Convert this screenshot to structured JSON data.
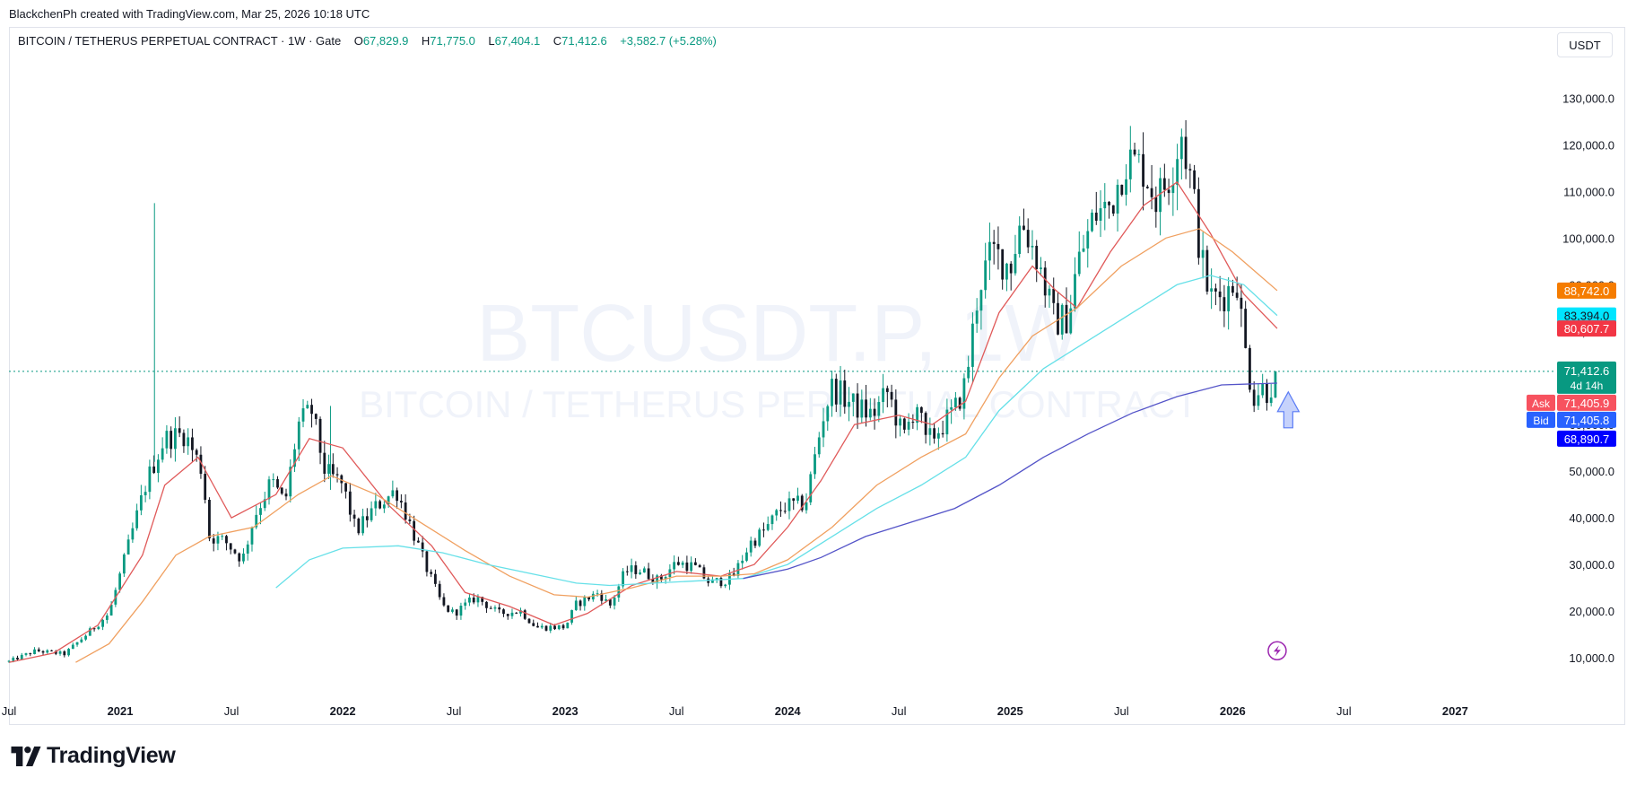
{
  "attribution": "BlackchenPh created with TradingView.com, Mar 25, 2026 10:18 UTC",
  "legend": {
    "symbol": "BITCOIN / TETHERUS PERPETUAL CONTRACT · 1W · Gate",
    "o_label": "O",
    "o": "67,829.9",
    "h_label": "H",
    "h": "71,775.0",
    "l_label": "L",
    "l": "67,404.1",
    "c_label": "C",
    "c": "71,412.6",
    "change": "+3,582.7 (+5.28%)"
  },
  "currency_button": "USDT",
  "watermark": {
    "ticker": "BTCUSDT.P, 1W",
    "name": "BITCOIN / TETHERUS PERPETUAL CONTRACT"
  },
  "price_tags": {
    "ma_orange": "88,742.0",
    "ma_cyan": "83,394.0",
    "ma_red": "80,607.7",
    "last": "71,412.6",
    "countdown": "4d 14h",
    "ask_label": "Ask",
    "ask": "71,405.9",
    "bid_label": "Bid",
    "bid": "71,405.8",
    "ma_blue": "68,890.7"
  },
  "colors": {
    "up": "#089981",
    "down": "#131722",
    "ma_red": "#e05a5a",
    "ma_orange": "#f0a060",
    "ma_cyan": "#66e0e8",
    "ma_blue": "#5454c8",
    "tag_orange": "#f57c00",
    "tag_cyan": "#00e5ff",
    "tag_red": "#f23645",
    "tag_green": "#089981",
    "ask": "#f7525f",
    "bid": "#2962ff",
    "tag_blue": "#0000ff"
  },
  "brand": "TradingView",
  "chart_data": {
    "type": "candlestick",
    "title": "BITCOIN / TETHERUS PERPETUAL CONTRACT · 1W · Gate",
    "y_unit": "USDT",
    "ylim": [
      3000,
      140000
    ],
    "xlim": [
      2020.5,
      2027.45
    ],
    "y_ticks": [
      {
        "value": 10000,
        "label": "10,000.0"
      },
      {
        "value": 20000,
        "label": "20,000.0"
      },
      {
        "value": 30000,
        "label": "30,000.0"
      },
      {
        "value": 40000,
        "label": "40,000.0"
      },
      {
        "value": 50000,
        "label": "50,000.0"
      },
      {
        "value": 60000,
        "label": "60,000.0"
      },
      {
        "value": 70000,
        "label": "70,000.0"
      },
      {
        "value": 80000,
        "label": "80,000.0"
      },
      {
        "value": 90000,
        "label": "90,000.0"
      },
      {
        "value": 100000,
        "label": "100,000.0"
      },
      {
        "value": 110000,
        "label": "110,000.0"
      },
      {
        "value": 120000,
        "label": "120,000.0"
      },
      {
        "value": 130000,
        "label": "130,000.0"
      }
    ],
    "x_ticks": [
      {
        "t": 2020.5,
        "label": "Jul",
        "bold": false
      },
      {
        "t": 2021.0,
        "label": "2021",
        "bold": true
      },
      {
        "t": 2021.5,
        "label": "Jul",
        "bold": false
      },
      {
        "t": 2022.0,
        "label": "2022",
        "bold": true
      },
      {
        "t": 2022.5,
        "label": "Jul",
        "bold": false
      },
      {
        "t": 2023.0,
        "label": "2023",
        "bold": true
      },
      {
        "t": 2023.5,
        "label": "Jul",
        "bold": false
      },
      {
        "t": 2024.0,
        "label": "2024",
        "bold": true
      },
      {
        "t": 2024.5,
        "label": "Jul",
        "bold": false
      },
      {
        "t": 2025.0,
        "label": "2025",
        "bold": true
      },
      {
        "t": 2025.5,
        "label": "Jul",
        "bold": false
      },
      {
        "t": 2026.0,
        "label": "2026",
        "bold": true
      },
      {
        "t": 2026.5,
        "label": "Jul",
        "bold": false
      },
      {
        "t": 2027.0,
        "label": "2027",
        "bold": true
      }
    ],
    "price_anchors": [
      [
        2020.5,
        9200
      ],
      [
        2020.62,
        11500
      ],
      [
        2020.75,
        10800
      ],
      [
        2020.86,
        15500
      ],
      [
        2020.95,
        19500
      ],
      [
        2021.03,
        33000
      ],
      [
        2021.12,
        48000
      ],
      [
        2021.2,
        57000
      ],
      [
        2021.29,
        58000
      ],
      [
        2021.37,
        50000
      ],
      [
        2021.4,
        36000
      ],
      [
        2021.47,
        35000
      ],
      [
        2021.55,
        31000
      ],
      [
        2021.6,
        40000
      ],
      [
        2021.68,
        48000
      ],
      [
        2021.74,
        43000
      ],
      [
        2021.8,
        60000
      ],
      [
        2021.86,
        63000
      ],
      [
        2021.92,
        50000
      ],
      [
        2022.0,
        47000
      ],
      [
        2022.06,
        37000
      ],
      [
        2022.14,
        42000
      ],
      [
        2022.24,
        46000
      ],
      [
        2022.3,
        39000
      ],
      [
        2022.37,
        30000
      ],
      [
        2022.45,
        21000
      ],
      [
        2022.5,
        19500
      ],
      [
        2022.6,
        23000
      ],
      [
        2022.7,
        19500
      ],
      [
        2022.8,
        20000
      ],
      [
        2022.87,
        16500
      ],
      [
        2023.0,
        16600
      ],
      [
        2023.05,
        21500
      ],
      [
        2023.15,
        24000
      ],
      [
        2023.2,
        21000
      ],
      [
        2023.27,
        28500
      ],
      [
        2023.33,
        29000
      ],
      [
        2023.42,
        26500
      ],
      [
        2023.5,
        30500
      ],
      [
        2023.58,
        29500
      ],
      [
        2023.65,
        26000
      ],
      [
        2023.75,
        27000
      ],
      [
        2023.83,
        34500
      ],
      [
        2023.9,
        37500
      ],
      [
        2023.98,
        42500
      ],
      [
        2024.08,
        43000
      ],
      [
        2024.16,
        62000
      ],
      [
        2024.2,
        68000
      ],
      [
        2024.3,
        64000
      ],
      [
        2024.38,
        62000
      ],
      [
        2024.45,
        67000
      ],
      [
        2024.52,
        57000
      ],
      [
        2024.58,
        65000
      ],
      [
        2024.62,
        56000
      ],
      [
        2024.68,
        59000
      ],
      [
        2024.75,
        63000
      ],
      [
        2024.8,
        69000
      ],
      [
        2024.86,
        90000
      ],
      [
        2024.92,
        97000
      ],
      [
        2025.0,
        94000
      ],
      [
        2025.05,
        104000
      ],
      [
        2025.12,
        96000
      ],
      [
        2025.2,
        82000
      ],
      [
        2025.26,
        83000
      ],
      [
        2025.3,
        94000
      ],
      [
        2025.38,
        105000
      ],
      [
        2025.45,
        107000
      ],
      [
        2025.52,
        117000
      ],
      [
        2025.6,
        115000
      ],
      [
        2025.66,
        108000
      ],
      [
        2025.72,
        114000
      ],
      [
        2025.77,
        123000
      ],
      [
        2025.82,
        110000
      ],
      [
        2025.86,
        95000
      ],
      [
        2025.9,
        87000
      ],
      [
        2025.96,
        88000
      ],
      [
        2026.02,
        91000
      ],
      [
        2026.05,
        78000
      ],
      [
        2026.09,
        66000
      ],
      [
        2026.13,
        68000
      ],
      [
        2026.16,
        67000
      ],
      [
        2026.2,
        71412
      ]
    ],
    "ma_series": [
      {
        "name": "MA (red)",
        "color": "#e05a5a",
        "last": 80607.7,
        "points": [
          [
            2020.5,
            9000
          ],
          [
            2020.7,
            11000
          ],
          [
            2020.9,
            17000
          ],
          [
            2021.1,
            32000
          ],
          [
            2021.2,
            47000
          ],
          [
            2021.35,
            53000
          ],
          [
            2021.5,
            40000
          ],
          [
            2021.7,
            45000
          ],
          [
            2021.85,
            57000
          ],
          [
            2022.0,
            55000
          ],
          [
            2022.2,
            43000
          ],
          [
            2022.4,
            34000
          ],
          [
            2022.55,
            24000
          ],
          [
            2022.75,
            21000
          ],
          [
            2022.95,
            17000
          ],
          [
            2023.1,
            19500
          ],
          [
            2023.3,
            25500
          ],
          [
            2023.5,
            28500
          ],
          [
            2023.7,
            27500
          ],
          [
            2023.85,
            30000
          ],
          [
            2024.0,
            38000
          ],
          [
            2024.15,
            48000
          ],
          [
            2024.3,
            60000
          ],
          [
            2024.5,
            62000
          ],
          [
            2024.65,
            60000
          ],
          [
            2024.8,
            65000
          ],
          [
            2024.95,
            84000
          ],
          [
            2025.1,
            94000
          ],
          [
            2025.2,
            89000
          ],
          [
            2025.3,
            85000
          ],
          [
            2025.45,
            97000
          ],
          [
            2025.6,
            107000
          ],
          [
            2025.75,
            112000
          ],
          [
            2025.9,
            101000
          ],
          [
            2026.05,
            88000
          ],
          [
            2026.2,
            80607.7
          ]
        ]
      },
      {
        "name": "MA (orange)",
        "color": "#f0a060",
        "last": 88742.0,
        "points": [
          [
            2020.8,
            9000
          ],
          [
            2020.95,
            13000
          ],
          [
            2021.1,
            22000
          ],
          [
            2021.25,
            32000
          ],
          [
            2021.4,
            36000
          ],
          [
            2021.6,
            38000
          ],
          [
            2021.8,
            45000
          ],
          [
            2021.95,
            49000
          ],
          [
            2022.15,
            45000
          ],
          [
            2022.35,
            39000
          ],
          [
            2022.55,
            33000
          ],
          [
            2022.75,
            27500
          ],
          [
            2022.95,
            23500
          ],
          [
            2023.1,
            23000
          ],
          [
            2023.3,
            25000
          ],
          [
            2023.5,
            27500
          ],
          [
            2023.7,
            27500
          ],
          [
            2023.85,
            28000
          ],
          [
            2024.0,
            31000
          ],
          [
            2024.2,
            38000
          ],
          [
            2024.4,
            47000
          ],
          [
            2024.6,
            53000
          ],
          [
            2024.8,
            58000
          ],
          [
            2024.95,
            70000
          ],
          [
            2025.1,
            79000
          ],
          [
            2025.3,
            85000
          ],
          [
            2025.5,
            94000
          ],
          [
            2025.7,
            100000
          ],
          [
            2025.85,
            102000
          ],
          [
            2026.0,
            97000
          ],
          [
            2026.2,
            88742
          ]
        ]
      },
      {
        "name": "MA (cyan)",
        "color": "#66e0e8",
        "last": 83394.0,
        "points": [
          [
            2021.7,
            25000
          ],
          [
            2021.85,
            31000
          ],
          [
            2022.0,
            33500
          ],
          [
            2022.25,
            34000
          ],
          [
            2022.45,
            32500
          ],
          [
            2022.65,
            30000
          ],
          [
            2022.85,
            28000
          ],
          [
            2023.05,
            26000
          ],
          [
            2023.2,
            25500
          ],
          [
            2023.4,
            26000
          ],
          [
            2023.6,
            26500
          ],
          [
            2023.8,
            27000
          ],
          [
            2024.0,
            30000
          ],
          [
            2024.2,
            36000
          ],
          [
            2024.4,
            42000
          ],
          [
            2024.6,
            47000
          ],
          [
            2024.8,
            53000
          ],
          [
            2024.95,
            63000
          ],
          [
            2025.15,
            72000
          ],
          [
            2025.35,
            78000
          ],
          [
            2025.55,
            84000
          ],
          [
            2025.75,
            90000
          ],
          [
            2025.9,
            92000
          ],
          [
            2026.05,
            90000
          ],
          [
            2026.2,
            83394
          ]
        ]
      },
      {
        "name": "MA (blue)",
        "color": "#5454c8",
        "last": 68890.7,
        "points": [
          [
            2023.8,
            27000
          ],
          [
            2024.0,
            29000
          ],
          [
            2024.15,
            31500
          ],
          [
            2024.35,
            36000
          ],
          [
            2024.55,
            39000
          ],
          [
            2024.75,
            42000
          ],
          [
            2024.95,
            47000
          ],
          [
            2025.15,
            53000
          ],
          [
            2025.35,
            58000
          ],
          [
            2025.55,
            62500
          ],
          [
            2025.75,
            66000
          ],
          [
            2025.95,
            68500
          ],
          [
            2026.2,
            68890.7
          ]
        ]
      }
    ],
    "last_price": 71412.6,
    "ask": 71405.9,
    "bid": 71405.8,
    "annotations": [
      {
        "type": "arrow-up",
        "t": 2026.25,
        "price": 62000,
        "color": "#5b7cf5"
      },
      {
        "type": "lightning-icon",
        "t": 2026.2,
        "price": 11500,
        "color": "#9c27b0"
      }
    ]
  }
}
